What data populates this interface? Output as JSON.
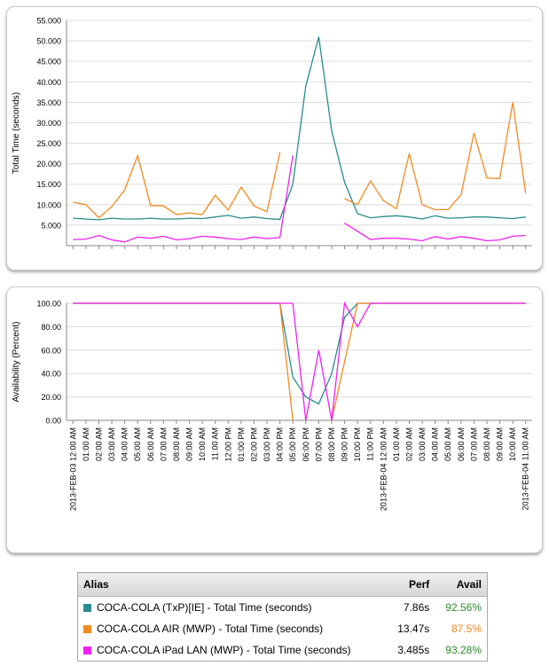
{
  "chart_data": [
    {
      "type": "line",
      "ylabel": "Total Time (seconds)",
      "ylim": [
        0,
        55000
      ],
      "yticks": [
        "5.000",
        "10.000",
        "15.000",
        "20.000",
        "25.000",
        "30.000",
        "35.000",
        "40.000",
        "45.000",
        "50.000",
        "55.000"
      ],
      "grid": true,
      "series": [
        {
          "name": "COCA-COLA (TxP)[IE] - Total Time (seconds)",
          "color": "#2a8c8c",
          "values": [
            6700,
            6500,
            6300,
            6700,
            6500,
            6500,
            6700,
            6500,
            6500,
            6700,
            6600,
            7000,
            7400,
            6700,
            7000,
            6600,
            6400,
            15000,
            39000,
            51000,
            28000,
            15500,
            7800,
            6800,
            7100,
            7300,
            7000,
            6500,
            7300,
            6700,
            6800,
            7000,
            7000,
            6800,
            6600,
            7000
          ]
        },
        {
          "name": "COCA-COLA AIR (MWP) - Total Time (seconds)",
          "color": "#f28a20",
          "values": [
            10600,
            10000,
            6800,
            9500,
            13600,
            22000,
            9800,
            9700,
            7600,
            8000,
            7600,
            12300,
            8700,
            14300,
            9700,
            8300,
            22800,
            null,
            null,
            null,
            null,
            11500,
            10000,
            15800,
            11000,
            9000,
            22500,
            10000,
            8800,
            8800,
            12400,
            27500,
            16500,
            16400,
            35000,
            12800
          ]
        },
        {
          "name": "COCA-COLA iPad LAN (MWP) - Total Time (seconds)",
          "color": "#ee22ee",
          "values": [
            1500,
            1600,
            2500,
            1400,
            900,
            2100,
            1800,
            2300,
            1400,
            1700,
            2300,
            2100,
            1700,
            1500,
            2100,
            1700,
            2000,
            22000,
            null,
            null,
            null,
            5500,
            3500,
            1500,
            1800,
            1800,
            1600,
            1200,
            2200,
            1600,
            2200,
            1800,
            1200,
            1400,
            2300,
            2500
          ]
        }
      ]
    },
    {
      "type": "line",
      "ylabel": "Availability (Percent)",
      "ylim": [
        0,
        100
      ],
      "yticks": [
        "0.00",
        "20.00",
        "40.00",
        "60.00",
        "80.00",
        "100.00"
      ],
      "grid": true,
      "x": [
        "2013-FEB-03 12:00 AM",
        "01:00 AM",
        "02:00 AM",
        "03:00 AM",
        "04:00 AM",
        "05:00 AM",
        "06:00 AM",
        "07:00 AM",
        "08:00 AM",
        "09:00 AM",
        "10:00 AM",
        "11:00 AM",
        "12:00 PM",
        "01:00 PM",
        "02:00 PM",
        "03:00 PM",
        "04:00 PM",
        "05:00 PM",
        "06:00 PM",
        "07:00 PM",
        "08:00 PM",
        "09:00 PM",
        "10:00 PM",
        "11:00 PM",
        "2013-FEB-04 12:00 AM",
        "01:00 AM",
        "02:00 AM",
        "03:00 AM",
        "04:00 AM",
        "05:00 AM",
        "06:00 AM",
        "07:00 AM",
        "08:00 AM",
        "09:00 AM",
        "10:00 AM",
        "2013-FEB-04 11:00 AM"
      ],
      "series": [
        {
          "name": "COCA-COLA (TxP)[IE] - Total Time (seconds)",
          "color": "#2a8c8c",
          "values": [
            100,
            100,
            100,
            100,
            100,
            100,
            100,
            100,
            100,
            100,
            100,
            100,
            100,
            100,
            100,
            100,
            100,
            37,
            20,
            14,
            40,
            88,
            100,
            100,
            100,
            100,
            100,
            100,
            100,
            100,
            100,
            100,
            100,
            100,
            100,
            100
          ]
        },
        {
          "name": "COCA-COLA AIR (MWP) - Total Time (seconds)",
          "color": "#f28a20",
          "values": [
            100,
            100,
            100,
            100,
            100,
            100,
            100,
            100,
            100,
            100,
            100,
            100,
            100,
            100,
            100,
            100,
            100,
            0,
            null,
            null,
            0,
            50,
            100,
            100,
            100,
            100,
            100,
            100,
            100,
            100,
            100,
            100,
            100,
            100,
            100,
            100
          ]
        },
        {
          "name": "COCA-COLA iPad LAN (MWP) - Total Time (seconds)",
          "color": "#ee22ee",
          "values": [
            100,
            100,
            100,
            100,
            100,
            100,
            100,
            100,
            100,
            100,
            100,
            100,
            100,
            100,
            100,
            100,
            100,
            100,
            0,
            60,
            0,
            100,
            80,
            100,
            100,
            100,
            100,
            100,
            100,
            100,
            100,
            100,
            100,
            100,
            100,
            100
          ]
        }
      ]
    }
  ],
  "legend": {
    "headers": {
      "alias": "Alias",
      "perf": "Perf",
      "avail": "Avail"
    },
    "rows": [
      {
        "alias": "COCA-COLA (TxP)[IE] - Total Time (seconds)",
        "perf": "7.86s",
        "avail": "92.56%",
        "color": "#2a8c8c",
        "avail_color": "#2e8b2e"
      },
      {
        "alias": "COCA-COLA AIR (MWP) - Total Time (seconds)",
        "perf": "13.47s",
        "avail": "87.5%",
        "color": "#f28a20",
        "avail_color": "#f28a20"
      },
      {
        "alias": "COCA-COLA iPad LAN (MWP) - Total Time (seconds)",
        "perf": "3.485s",
        "avail": "93.28%",
        "color": "#ee22ee",
        "avail_color": "#2e8b2e"
      }
    ]
  }
}
